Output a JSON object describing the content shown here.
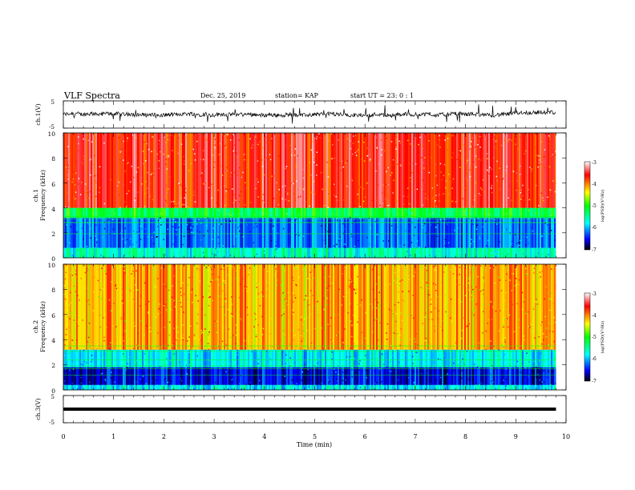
{
  "header": {
    "title": "VLF Spectra",
    "date": "Dec. 25, 2019",
    "station": "station= KAP",
    "start": "start  UT =   23: 0  : 1"
  },
  "chart_data": [
    {
      "type": "line",
      "name": "ch1-voltage",
      "ylabel": "ch.1(V)",
      "xlim": [
        0,
        10
      ],
      "ylim": [
        -5,
        5
      ],
      "yticks": [
        5,
        -5
      ],
      "x_end": 9.8,
      "baseline": 0,
      "noise_amplitude": 2.5,
      "color": "#000000"
    },
    {
      "type": "heatmap",
      "name": "ch1-spectrogram",
      "ylabel_top": "ch.1",
      "ylabel": "Frequency  (kHz)",
      "xlim": [
        0,
        10
      ],
      "ylim": [
        0,
        10
      ],
      "yticks": [
        0,
        2,
        4,
        6,
        8,
        10
      ],
      "x_end": 9.8,
      "bands": [
        {
          "from": 0,
          "to": 0.8,
          "level": 0.35
        },
        {
          "from": 0.8,
          "to": 3.2,
          "level": 0.2
        },
        {
          "from": 3.2,
          "to": 4.0,
          "level": 0.45
        },
        {
          "from": 4.0,
          "to": 10,
          "level": 0.85
        }
      ],
      "colorbar": {
        "label": "log(PSD)(V²/Hz)",
        "ticks": [
          "-3",
          "-4",
          "-5",
          "-6",
          "-7"
        ],
        "colors": [
          "#000000",
          "#0000ff",
          "#00ffff",
          "#00ff00",
          "#ffff00",
          "#ff0000",
          "#ffffff"
        ]
      }
    },
    {
      "type": "heatmap",
      "name": "ch2-spectrogram",
      "ylabel_top": "ch.2",
      "ylabel": "Frequency  (kHz)",
      "xlim": [
        0,
        10
      ],
      "ylim": [
        0,
        10
      ],
      "yticks": [
        0,
        2,
        4,
        6,
        8,
        10
      ],
      "x_end": 9.8,
      "bands": [
        {
          "from": 0,
          "to": 0.4,
          "level": 0.3
        },
        {
          "from": 0.4,
          "to": 1.8,
          "level": 0.12
        },
        {
          "from": 1.8,
          "to": 3.2,
          "level": 0.3
        },
        {
          "from": 3.2,
          "to": 10,
          "level": 0.72
        }
      ],
      "colorbar": {
        "label": "log(PSD)(V²/Hz)",
        "ticks": [
          "-3",
          "-4",
          "-5",
          "-6",
          "-7"
        ],
        "colors": [
          "#000000",
          "#0000ff",
          "#00ffff",
          "#00ff00",
          "#ffff00",
          "#ff0000",
          "#ffffff"
        ]
      }
    },
    {
      "type": "line",
      "name": "ch3-voltage",
      "ylabel": "ch.3(V)",
      "xlim": [
        0,
        10
      ],
      "ylim": [
        -5,
        5
      ],
      "yticks": [
        5,
        -5
      ],
      "x_end": 9.8,
      "baseline": 0,
      "noise_amplitude": 0,
      "color": "#000000"
    }
  ],
  "xaxis": {
    "label": "Time  (min)",
    "ticks": [
      "0",
      "1",
      "2",
      "3",
      "4",
      "5",
      "6",
      "7",
      "8",
      "9",
      "10"
    ]
  }
}
